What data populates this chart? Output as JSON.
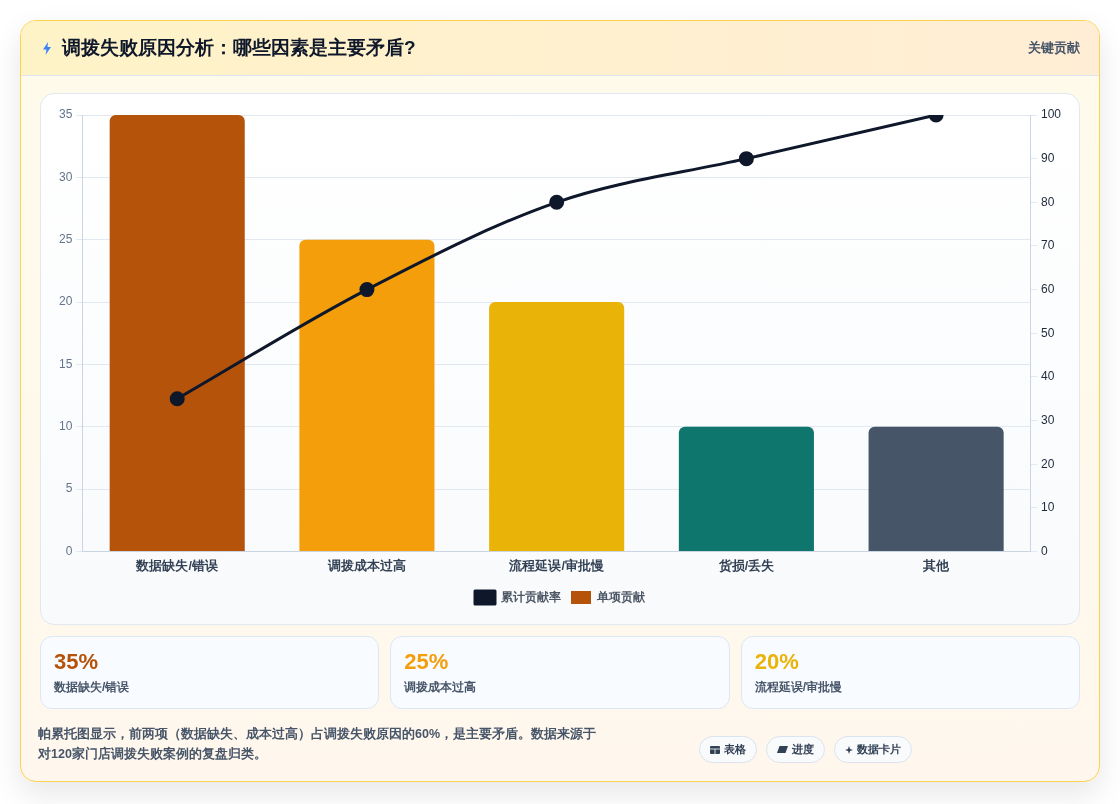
{
  "chart_data": [
    {
      "type": "bar",
      "title": "调拨失败原因分析：哪些因素是主要矛盾?",
      "subtitle": "关键贡献",
      "categories": [
        "数据缺失/错误",
        "调拨成本过高",
        "流程延误/审批慢",
        "货损/丢失",
        "其他"
      ],
      "series": [
        {
          "name": "累计贡献率",
          "type": "line",
          "axis": "y2",
          "color": "#0f172a",
          "values": [
            35,
            60,
            80,
            90,
            100
          ]
        },
        {
          "name": "单项贡献",
          "type": "bar",
          "colors": [
            "#b45309",
            "#f59e0b",
            "#eab308",
            "#0f766e",
            "#475569"
          ],
          "values": [
            35,
            25,
            20,
            10,
            10
          ]
        }
      ],
      "ylim": [
        0,
        35
      ],
      "yticks": [
        0,
        5,
        10,
        15,
        20,
        25,
        30,
        35
      ],
      "y2lim": [
        0,
        100
      ],
      "y2ticks": [
        0,
        10,
        20,
        30,
        40,
        50,
        60,
        70,
        80,
        90,
        100
      ],
      "grid": "y",
      "legend": "bottom",
      "marker": "circle",
      "line_style": "solid",
      "annotations": [
        "帕累托图显示，前两项（数据缺失、成本过高）占调拨失败原因的60%，是主要矛盾。数据来源于对120家门店调拨失败案例的复盘归类。",
        "表格",
        "进度",
        "数据卡片"
      ]
    },
    {
      "type": "other",
      "annotations": [
        "35%",
        "数据缺失/错误",
        "25%",
        "调拨成本过高",
        "20%",
        "流程延误/审批慢"
      ],
      "colors": [
        "#b45309",
        "#f59e0b",
        "#eab308"
      ]
    }
  ]
}
